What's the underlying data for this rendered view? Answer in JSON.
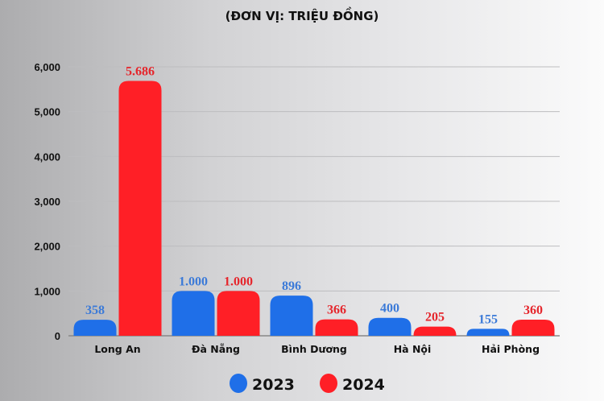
{
  "chart_data": {
    "type": "bar",
    "title": "(ĐƠN VỊ: TRIỆU ĐỒNG)",
    "categories": [
      "Long An",
      "Đà Nẵng",
      "Bình Dương",
      "Hà Nội",
      "Hải Phòng"
    ],
    "series": [
      {
        "name": "2023",
        "color": "#1f6fe8",
        "label_color": "#3b7ad8",
        "values": [
          358,
          1000,
          896,
          400,
          155
        ],
        "labels": [
          "358",
          "1.000",
          "896",
          "400",
          "155"
        ]
      },
      {
        "name": "2024",
        "color": "#ff1f26",
        "label_color": "#e5262c",
        "values": [
          5686,
          1000,
          366,
          205,
          360
        ],
        "labels": [
          "5.686",
          "1.000",
          "366",
          "205",
          "360"
        ]
      }
    ],
    "yticks": [
      "0",
      "1,000",
      "2,000",
      "3,000",
      "4,000",
      "5,000",
      "6,000"
    ],
    "ytick_values": [
      0,
      1000,
      2000,
      3000,
      4000,
      5000,
      6000
    ],
    "ylim": [
      0,
      6000
    ],
    "grid": true,
    "legend": "bottom"
  }
}
